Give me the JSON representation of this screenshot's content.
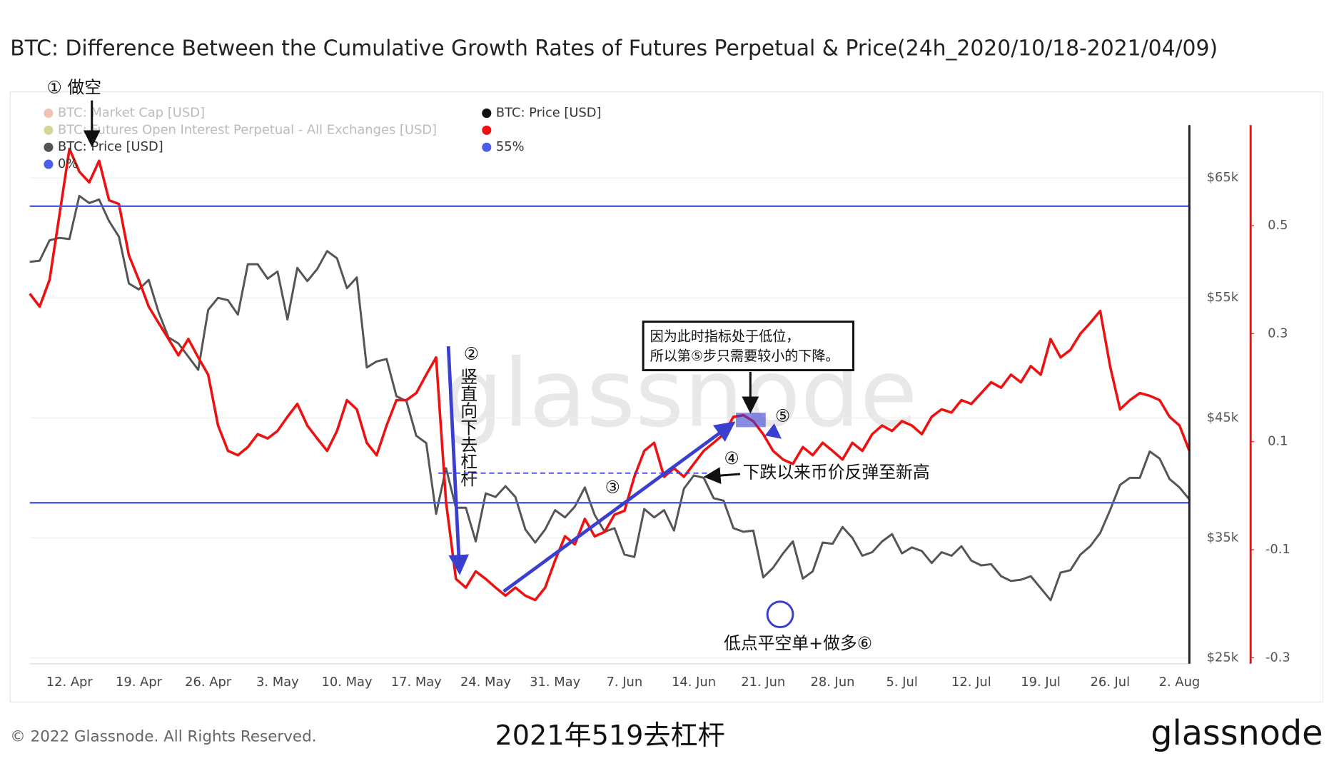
{
  "chart_data": {
    "type": "line",
    "title": "BTC: Difference Between the Cumulative Growth Rates of Futures Perpetual & Price(24h_2020/10/18-2021/04/09)",
    "categories": [
      null,
      null,
      null,
      null,
      "12. Apr",
      null,
      null,
      null,
      null,
      null,
      null,
      "19. Apr",
      null,
      null,
      null,
      null,
      null,
      null,
      "26. Apr",
      null,
      null,
      null,
      null,
      null,
      null,
      "3. May",
      null,
      null,
      null,
      null,
      null,
      null,
      "10. May",
      null,
      null,
      null,
      null,
      null,
      null,
      "17. May",
      null,
      null,
      null,
      null,
      null,
      null,
      "24. May",
      null,
      null,
      null,
      null,
      null,
      null,
      "31. May",
      null,
      null,
      null,
      null,
      null,
      null,
      "7. Jun",
      null,
      null,
      null,
      null,
      null,
      null,
      "14. Jun",
      null,
      null,
      null,
      null,
      null,
      null,
      "21. Jun",
      null,
      null,
      null,
      null,
      null,
      null,
      "28. Jun",
      null,
      null,
      null,
      null,
      null,
      null,
      "5. Jul",
      null,
      null,
      null,
      null,
      null,
      null,
      "12. Jul",
      null,
      null,
      null,
      null,
      null,
      null,
      "19. Jul",
      null,
      null,
      null,
      null,
      null,
      null,
      "26. Jul",
      null,
      null,
      null,
      null,
      null,
      null,
      "2. Aug",
      null
    ],
    "ylim": [
      24500,
      69400
    ],
    "yticks": [
      {
        "value": 25000,
        "label": "$25k"
      },
      {
        "value": 35000,
        "label": "$35k"
      },
      {
        "value": 45000,
        "label": "$45k"
      },
      {
        "value": 55000,
        "label": "$55k"
      },
      {
        "value": 65000,
        "label": "$65k"
      }
    ],
    "y2lim": [
      -0.311,
      0.686
    ],
    "y2ticks": [
      -0.3,
      -0.1,
      0.1,
      0.3,
      0.5
    ],
    "grid": true,
    "series": [
      {
        "name": "BTC: Market Cap [USD]",
        "color": "#e07b53",
        "hidden": true
      },
      {
        "name": "BTC: Futures Open Interest Perpetual - All Exchanges [USD]",
        "color": "#a5a51c",
        "hidden": true
      },
      {
        "name": "BTC: Price [USD]",
        "color": "#555555",
        "values": [
          58000,
          58100,
          59800,
          60000,
          59900,
          63500,
          62900,
          63200,
          61400,
          60100,
          56200,
          55700,
          56500,
          53800,
          51700,
          51200,
          50100,
          49000,
          54000,
          55000,
          54800,
          53600,
          57800,
          57800,
          56600,
          57200,
          53200,
          57500,
          56400,
          57400,
          58900,
          58300,
          55800,
          56700,
          49200,
          49700,
          49900,
          46800,
          46400,
          43500,
          42900,
          37000,
          40800,
          37500,
          37500,
          34700,
          38700,
          38400,
          39300,
          38400,
          35700,
          34600,
          35700,
          37300,
          36700,
          37600,
          39200,
          36900,
          35500,
          35800,
          33600,
          33400,
          37400,
          36700,
          37300,
          35600,
          39100,
          40200,
          40000,
          38300,
          38100,
          35800,
          35500,
          35600,
          31700,
          32500,
          33700,
          34700,
          31600,
          32200,
          34600,
          34500,
          35900,
          35000,
          33500,
          33800,
          34700,
          35300,
          33700,
          34200,
          33900,
          32900,
          33800,
          33500,
          34300,
          33100,
          32700,
          32800,
          31800,
          31400,
          31500,
          31800,
          30800,
          29800,
          32100,
          32300,
          33600,
          34300,
          35400,
          37300,
          39400,
          40000,
          40000,
          42200,
          41600,
          39900,
          39200,
          38200
        ]
      },
      {
        "name": "0%",
        "color": "#4a5ee8",
        "axis": "y2",
        "level": -0.013
      },
      {
        "name": "BTC: Price [USD]",
        "color": "#111111",
        "hidden": true
      },
      {
        "color": "#ee1111",
        "axis": "y2",
        "values": [
          0.374,
          0.35,
          0.4,
          0.52,
          0.642,
          0.6,
          0.58,
          0.62,
          0.547,
          0.54,
          0.445,
          0.4,
          0.35,
          0.32,
          0.29,
          0.26,
          0.29,
          0.256,
          0.224,
          0.13,
          0.083,
          0.075,
          0.09,
          0.114,
          0.106,
          0.12,
          0.146,
          0.17,
          0.13,
          0.106,
          0.083,
          0.12,
          0.177,
          0.16,
          0.098,
          0.075,
          0.13,
          0.177,
          0.177,
          0.19,
          0.224,
          0.256,
          -0.012,
          -0.154,
          -0.17,
          -0.14,
          -0.154,
          -0.17,
          -0.185,
          -0.17,
          -0.185,
          -0.193,
          -0.17,
          -0.12,
          -0.075,
          -0.09,
          -0.043,
          -0.075,
          -0.067,
          -0.035,
          -0.028,
          0.035,
          0.083,
          0.098,
          0.035,
          0.051,
          0.035,
          0.059,
          0.083,
          0.098,
          0.114,
          0.146,
          0.149,
          0.138,
          0.114,
          0.083,
          0.067,
          0.059,
          0.09,
          0.075,
          0.098,
          0.083,
          0.067,
          0.098,
          0.083,
          0.114,
          0.13,
          0.12,
          0.138,
          0.13,
          0.114,
          0.146,
          0.16,
          0.154,
          0.177,
          0.17,
          0.19,
          0.21,
          0.2,
          0.224,
          0.21,
          0.24,
          0.224,
          0.29,
          0.256,
          0.27,
          0.3,
          0.32,
          0.342,
          0.24,
          0.16,
          0.177,
          0.19,
          0.185,
          0.177,
          0.146,
          0.13,
          0.083
        ]
      },
      {
        "name": "55%",
        "color": "#4a5ee8",
        "axis": "y2",
        "level": 0.536
      }
    ],
    "annotations": [
      "① 做空",
      "②",
      "竖直向下去杠杆",
      "③",
      "④",
      "下跌以来币价反弹至新高",
      "⑤",
      "因为此时指标处于低位，",
      "所以第⑤步只需要较小的下降。",
      "低点平空单+做多⑥",
      "2021年519去杠杆"
    ],
    "watermark": "glassnode",
    "copyright": "© 2022 Glassnode. All Rights Reserved.",
    "logo": "glassnode"
  }
}
